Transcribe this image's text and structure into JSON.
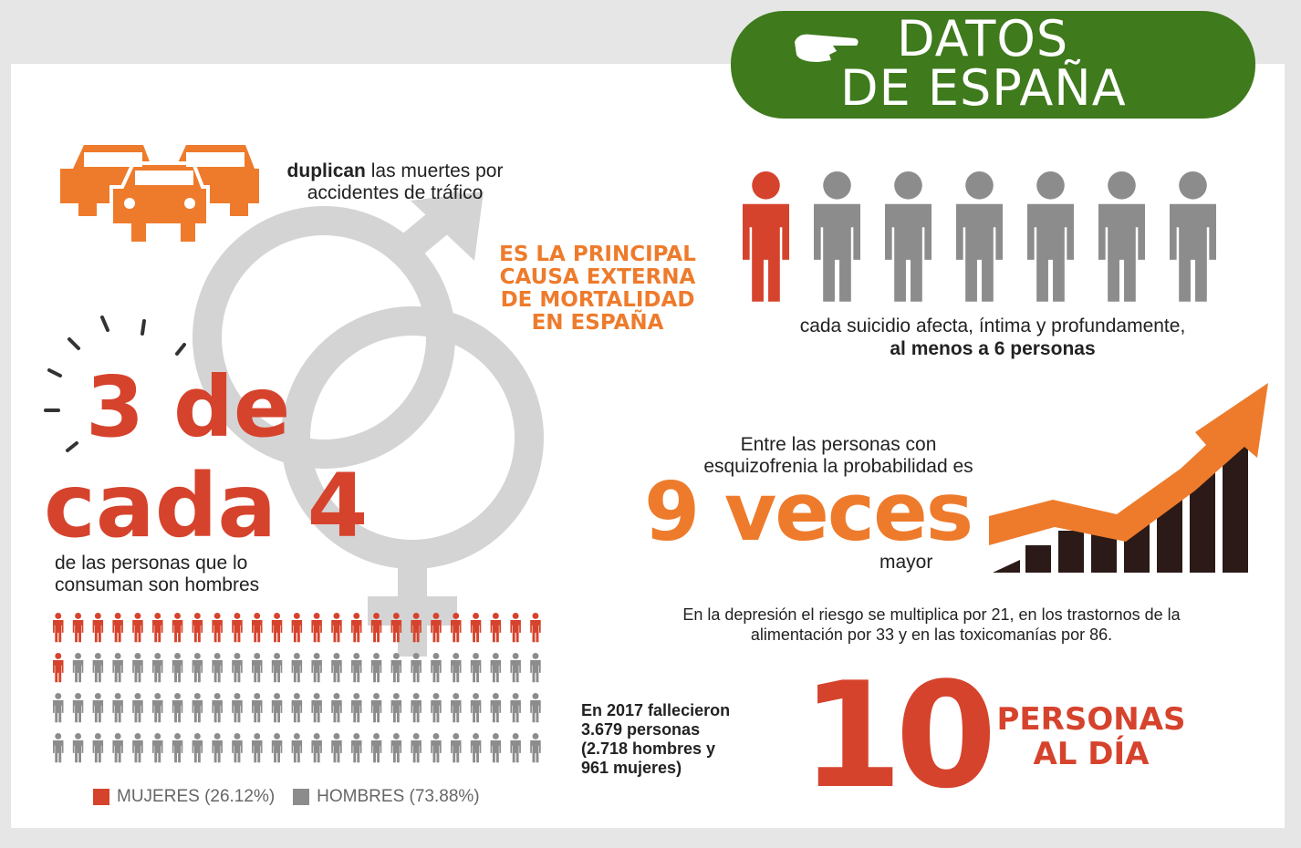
{
  "banner": {
    "line1": "DATOS",
    "line2": "DE ESPAÑA",
    "icon": "pointing-hand-icon"
  },
  "cars": {
    "bold": "duplican",
    "rest": " las muertes por accidentes de tráfico",
    "icon": "cars-icon"
  },
  "headline": {
    "line1": "ES LA PRINCIPAL",
    "line2": "CAUSA EXTERNA",
    "line3": "DE MORTALIDAD",
    "line4": "EN ESPAÑA"
  },
  "ratio": {
    "line1": "3 de",
    "line2": "cada 4",
    "caption_line1": "de las personas que lo",
    "caption_line2": "consuman son hombres"
  },
  "affect": {
    "line1": "cada suicidio afecta, íntima y profundamente,",
    "line2": "al menos a 6 personas"
  },
  "schizo": {
    "line1": "Entre las personas con",
    "line2": "esquizofrenia la probabilidad es",
    "big": "9 veces",
    "after": "mayor"
  },
  "depression": {
    "line1": "En la depresión el riesgo se multiplica por 21, en los trastornos de la",
    "line2": "alimentación por 33 y en las toxicomanías por 86."
  },
  "deaths2017": {
    "line1": "En 2017 fallecieron",
    "line2": "3.679 personas",
    "line3": "(2.718 hombres y",
    "line4": "961 mujeres)"
  },
  "per_day": {
    "number": "10",
    "line1": "PERSONAS",
    "line2": "AL DÍA"
  },
  "legend": {
    "women": "MUJERES (26.12%)",
    "men": "HOMBRES (73.88%)"
  },
  "people_grid": {
    "total": 100,
    "women_count": 26
  },
  "colors": {
    "red": "#d6432d",
    "orange": "#ee7b2c",
    "green": "#3f7a1c",
    "gray": "#8c8c8c",
    "dark": "#2b1a17"
  }
}
